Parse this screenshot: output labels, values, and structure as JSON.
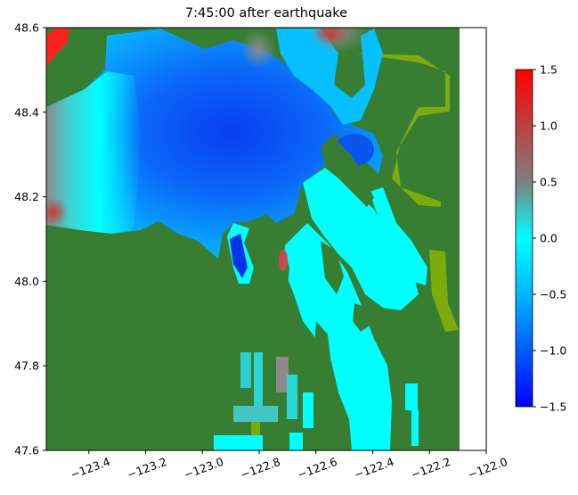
{
  "chart_data": [
    {
      "type": "heatmap",
      "title": "7:45:00 after earthquake",
      "xlabel": "",
      "ylabel": "",
      "xlim": [
        -123.55,
        -122.0
      ],
      "ylim": [
        47.6,
        48.6
      ],
      "x_ticks": [
        -123.4,
        -123.2,
        -123.0,
        -122.8,
        -122.6,
        -122.4,
        -122.2,
        -122.0
      ],
      "x_tick_labels": [
        "−123.4",
        "−123.2",
        "−123.0",
        "−122.8",
        "−122.6",
        "−122.4",
        "−122.2",
        "−122.0"
      ],
      "y_ticks": [
        47.6,
        47.8,
        48.0,
        48.2,
        48.4,
        48.6
      ],
      "y_tick_labels": [
        "47.6",
        "47.8",
        "48.0",
        "48.2",
        "48.4",
        "48.6"
      ],
      "grid": false,
      "data_extent_lon": [
        -123.55,
        -122.1
      ],
      "land_color": "#377e32",
      "shallow_color": "#7cab0e",
      "colormap": [
        {
          "value": -1.5,
          "color": "#0000ff"
        },
        {
          "value": -0.5,
          "color": "#00b6ff"
        },
        {
          "value": 0.0,
          "color": "#00ffff"
        },
        {
          "value": 0.5,
          "color": "#7f8080"
        },
        {
          "value": 1.5,
          "color": "#ff0000"
        }
      ]
    },
    {
      "type": "colorbar",
      "range": [
        -1.5,
        1.5
      ],
      "ticks": [
        -1.5,
        -1.0,
        -0.5,
        0.0,
        0.5,
        1.0,
        1.5
      ],
      "tick_labels": [
        "−1.5",
        "−1.0",
        "−0.5",
        "0.0",
        "0.5",
        "1.0",
        "1.5"
      ]
    }
  ]
}
